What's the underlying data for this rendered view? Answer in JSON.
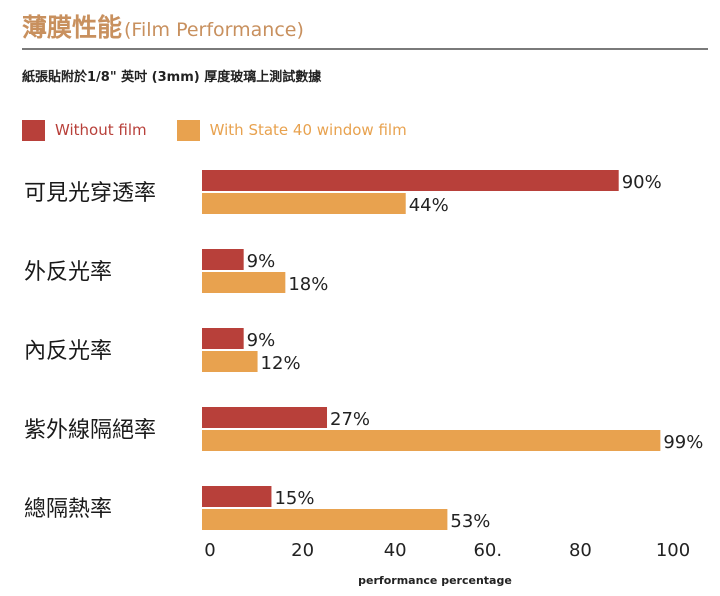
{
  "header": {
    "title": "薄膜性能",
    "title_en": "(Film Performance)",
    "subtitle": "紙張貼附於1/8\" 英吋 (3mm) 厚度玻璃上測試數據"
  },
  "colors": {
    "without_film": "#b8403a",
    "with_film": "#e8a24f",
    "title": "#c8905e"
  },
  "chart_data": {
    "type": "bar",
    "orientation": "horizontal",
    "categories": [
      "可見光穿透率",
      "外反光率",
      "內反光率",
      "紫外線隔絕率",
      "總隔熱率"
    ],
    "series": [
      {
        "name": "Without film",
        "values": [
          90,
          9,
          9,
          27,
          15
        ],
        "labels": [
          "90%",
          "9%",
          "9%",
          "27%",
          "15%"
        ]
      },
      {
        "name": "With State 40 window film",
        "values": [
          44,
          18,
          12,
          99,
          53
        ],
        "labels": [
          "44%",
          "18%",
          "12%",
          "99%",
          "53%"
        ]
      }
    ],
    "xticks": [
      0,
      20,
      40,
      60,
      80,
      100
    ],
    "xtick_labels": [
      "0",
      "20",
      "40",
      "60.",
      "80",
      "100"
    ],
    "xlim": [
      0,
      100
    ],
    "xlabel": "performance  percentage",
    "legend": "top-left",
    "grid": false
  }
}
